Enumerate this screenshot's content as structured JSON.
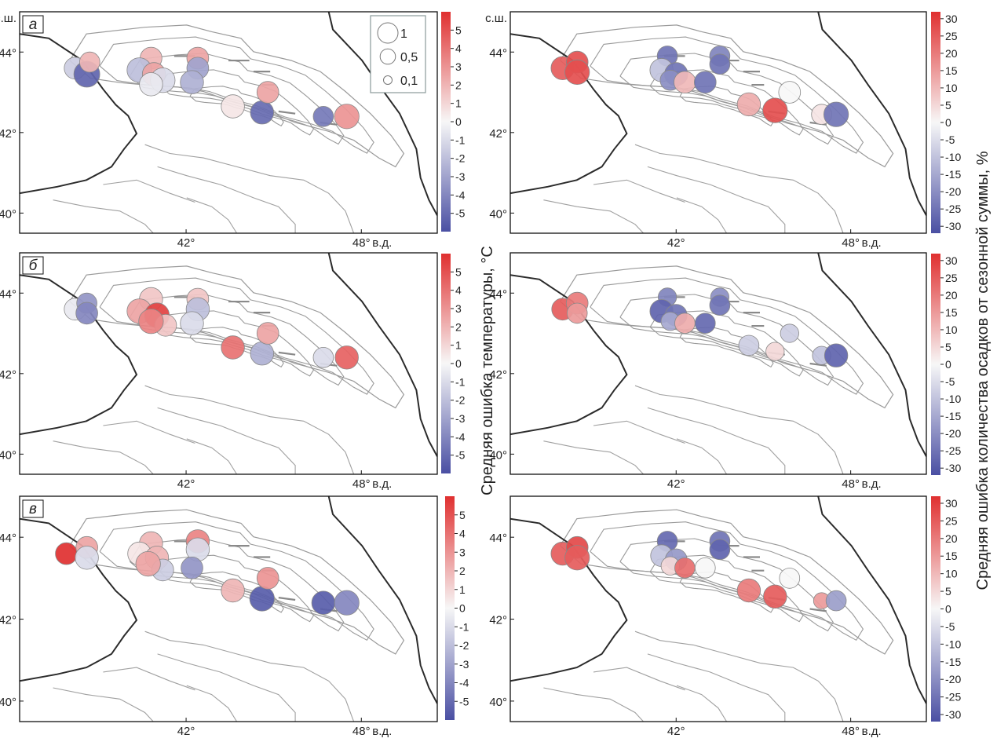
{
  "axes": {
    "north_label": "с.ш.",
    "east_label": "в.д.",
    "lat_ticks": [
      "44°",
      "42°",
      "40°"
    ],
    "lon_ticks": [
      "42°",
      "48°"
    ]
  },
  "size_legend": [
    {
      "label": "1",
      "value": 1.0
    },
    {
      "label": "0,5",
      "value": 0.5
    },
    {
      "label": "0,1",
      "value": 0.1
    }
  ],
  "temperature_colorbar": {
    "label": "Средняя ошибка температуры, °C",
    "range": [
      -6,
      6
    ],
    "ticks": [
      "5",
      "4",
      "3",
      "2",
      "1",
      "0",
      "-1",
      "-2",
      "-3",
      "-4",
      "-5"
    ],
    "low_color": "#4a4fa3",
    "mid_color": "#f7f7f7",
    "high_color": "#e03030"
  },
  "precipitation_colorbar": {
    "label": "Средняя ошибка количества осадков от сезонной суммы, %",
    "range": [
      -32,
      32
    ],
    "ticks": [
      "30",
      "25",
      "20",
      "15",
      "10",
      "5",
      "0",
      "-5",
      "-10",
      "-15",
      "-20",
      "-25",
      "-30"
    ]
  },
  "panels": [
    {
      "letter": "а",
      "temperature": [
        {
          "lon": 38.2,
          "lat": 43.6,
          "size": 0.5,
          "value": -1.5
        },
        {
          "lon": 38.6,
          "lat": 43.45,
          "size": 0.8,
          "value": -5.2
        },
        {
          "lon": 38.7,
          "lat": 43.75,
          "size": 0.4,
          "value": 2.0
        },
        {
          "lon": 40.8,
          "lat": 43.85,
          "size": 0.5,
          "value": 2.0
        },
        {
          "lon": 40.4,
          "lat": 43.55,
          "size": 0.7,
          "value": -2.0
        },
        {
          "lon": 40.9,
          "lat": 43.45,
          "size": 0.6,
          "value": 2.5
        },
        {
          "lon": 41.2,
          "lat": 43.3,
          "size": 0.7,
          "value": -1.0
        },
        {
          "lon": 40.8,
          "lat": 43.2,
          "size": 0.6,
          "value": -0.5
        },
        {
          "lon": 42.4,
          "lat": 43.85,
          "size": 0.5,
          "value": 2.5
        },
        {
          "lon": 42.4,
          "lat": 43.6,
          "size": 0.5,
          "value": -3.0
        },
        {
          "lon": 42.2,
          "lat": 43.25,
          "size": 0.6,
          "value": -2.5
        },
        {
          "lon": 43.6,
          "lat": 42.65,
          "size": 0.6,
          "value": 0.5
        },
        {
          "lon": 44.6,
          "lat": 42.5,
          "size": 0.6,
          "value": -5.0
        },
        {
          "lon": 44.8,
          "lat": 43.0,
          "size": 0.5,
          "value": 2.5
        },
        {
          "lon": 46.7,
          "lat": 42.4,
          "size": 0.4,
          "value": -4.5
        },
        {
          "lon": 47.5,
          "lat": 42.4,
          "size": 0.7,
          "value": 3.0
        }
      ],
      "precipitation": [
        {
          "lon": 38.1,
          "lat": 43.6,
          "size": 0.6,
          "value": 25
        },
        {
          "lon": 38.6,
          "lat": 43.75,
          "size": 0.5,
          "value": 27
        },
        {
          "lon": 38.6,
          "lat": 43.5,
          "size": 0.7,
          "value": 27
        },
        {
          "lon": 41.7,
          "lat": 43.9,
          "size": 0.4,
          "value": -25
        },
        {
          "lon": 41.5,
          "lat": 43.55,
          "size": 0.6,
          "value": -10
        },
        {
          "lon": 42.0,
          "lat": 43.45,
          "size": 0.6,
          "value": -25
        },
        {
          "lon": 41.8,
          "lat": 43.3,
          "size": 0.4,
          "value": -20
        },
        {
          "lon": 42.3,
          "lat": 43.25,
          "size": 0.5,
          "value": 10
        },
        {
          "lon": 43.0,
          "lat": 43.25,
          "size": 0.5,
          "value": -25
        },
        {
          "lon": 43.5,
          "lat": 43.9,
          "size": 0.4,
          "value": -22
        },
        {
          "lon": 43.5,
          "lat": 43.7,
          "size": 0.4,
          "value": -25
        },
        {
          "lon": 44.5,
          "lat": 42.7,
          "size": 0.6,
          "value": 12
        },
        {
          "lon": 45.4,
          "lat": 42.55,
          "size": 0.7,
          "value": 27
        },
        {
          "lon": 45.9,
          "lat": 43.0,
          "size": 0.5,
          "value": 0
        },
        {
          "lon": 47.0,
          "lat": 42.45,
          "size": 0.4,
          "value": 3
        },
        {
          "lon": 47.5,
          "lat": 42.45,
          "size": 0.7,
          "value": -25
        }
      ]
    },
    {
      "letter": "б",
      "temperature": [
        {
          "lon": 38.2,
          "lat": 43.6,
          "size": 0.5,
          "value": -0.5
        },
        {
          "lon": 38.6,
          "lat": 43.75,
          "size": 0.4,
          "value": -3.5
        },
        {
          "lon": 38.6,
          "lat": 43.5,
          "size": 0.5,
          "value": -4.0
        },
        {
          "lon": 40.8,
          "lat": 43.85,
          "size": 0.6,
          "value": 1.5
        },
        {
          "lon": 40.4,
          "lat": 43.55,
          "size": 0.7,
          "value": 2.5
        },
        {
          "lon": 41.0,
          "lat": 43.45,
          "size": 0.7,
          "value": 5.5
        },
        {
          "lon": 41.3,
          "lat": 43.2,
          "size": 0.5,
          "value": 1.5
        },
        {
          "lon": 40.8,
          "lat": 43.3,
          "size": 0.7,
          "value": 3.5
        },
        {
          "lon": 42.4,
          "lat": 43.85,
          "size": 0.5,
          "value": 1.5
        },
        {
          "lon": 42.4,
          "lat": 43.6,
          "size": 0.6,
          "value": -2.0
        },
        {
          "lon": 42.2,
          "lat": 43.25,
          "size": 0.6,
          "value": -1.0
        },
        {
          "lon": 43.6,
          "lat": 42.65,
          "size": 0.6,
          "value": 4.0
        },
        {
          "lon": 44.6,
          "lat": 42.5,
          "size": 0.6,
          "value": -2.5
        },
        {
          "lon": 44.8,
          "lat": 43.0,
          "size": 0.5,
          "value": 2.5
        },
        {
          "lon": 46.7,
          "lat": 42.4,
          "size": 0.4,
          "value": -1.0
        },
        {
          "lon": 47.5,
          "lat": 42.4,
          "size": 0.6,
          "value": 4.5
        }
      ],
      "precipitation": [
        {
          "lon": 38.1,
          "lat": 43.6,
          "size": 0.5,
          "value": 25
        },
        {
          "lon": 38.6,
          "lat": 43.75,
          "size": 0.5,
          "value": 20
        },
        {
          "lon": 38.6,
          "lat": 43.5,
          "size": 0.4,
          "value": 15
        },
        {
          "lon": 41.7,
          "lat": 43.9,
          "size": 0.3,
          "value": -22
        },
        {
          "lon": 41.5,
          "lat": 43.55,
          "size": 0.6,
          "value": -28
        },
        {
          "lon": 42.0,
          "lat": 43.45,
          "size": 0.5,
          "value": -25
        },
        {
          "lon": 41.8,
          "lat": 43.3,
          "size": 0.3,
          "value": -15
        },
        {
          "lon": 42.3,
          "lat": 43.25,
          "size": 0.4,
          "value": 12
        },
        {
          "lon": 43.0,
          "lat": 43.25,
          "size": 0.4,
          "value": -27
        },
        {
          "lon": 43.5,
          "lat": 43.9,
          "size": 0.3,
          "value": -20
        },
        {
          "lon": 43.5,
          "lat": 43.7,
          "size": 0.4,
          "value": -25
        },
        {
          "lon": 44.5,
          "lat": 42.7,
          "size": 0.4,
          "value": -8
        },
        {
          "lon": 45.4,
          "lat": 42.55,
          "size": 0.3,
          "value": 5
        },
        {
          "lon": 45.9,
          "lat": 43.0,
          "size": 0.3,
          "value": -8
        },
        {
          "lon": 47.0,
          "lat": 42.45,
          "size": 0.3,
          "value": -10
        },
        {
          "lon": 47.5,
          "lat": 42.45,
          "size": 0.6,
          "value": -28
        }
      ]
    },
    {
      "letter": "в",
      "temperature": [
        {
          "lon": 37.9,
          "lat": 43.6,
          "size": 0.5,
          "value": 6.0
        },
        {
          "lon": 38.6,
          "lat": 43.75,
          "size": 0.5,
          "value": 2.5
        },
        {
          "lon": 38.6,
          "lat": 43.5,
          "size": 0.6,
          "value": -1.0
        },
        {
          "lon": 40.8,
          "lat": 43.85,
          "size": 0.6,
          "value": 2.0
        },
        {
          "lon": 40.4,
          "lat": 43.6,
          "size": 0.6,
          "value": 0.5
        },
        {
          "lon": 41.0,
          "lat": 43.5,
          "size": 0.6,
          "value": 2.0
        },
        {
          "lon": 41.2,
          "lat": 43.2,
          "size": 0.5,
          "value": -1.5
        },
        {
          "lon": 40.7,
          "lat": 43.35,
          "size": 0.7,
          "value": 2.5
        },
        {
          "lon": 42.4,
          "lat": 43.9,
          "size": 0.6,
          "value": 3.5
        },
        {
          "lon": 42.4,
          "lat": 43.7,
          "size": 0.6,
          "value": -1.0
        },
        {
          "lon": 42.2,
          "lat": 43.25,
          "size": 0.5,
          "value": -3.5
        },
        {
          "lon": 43.6,
          "lat": 42.7,
          "size": 0.6,
          "value": 2.0
        },
        {
          "lon": 44.6,
          "lat": 42.5,
          "size": 0.7,
          "value": -5.5
        },
        {
          "lon": 44.8,
          "lat": 43.0,
          "size": 0.5,
          "value": 3.0
        },
        {
          "lon": 46.7,
          "lat": 42.4,
          "size": 0.6,
          "value": -5.5
        },
        {
          "lon": 47.5,
          "lat": 42.4,
          "size": 0.7,
          "value": -4.0
        }
      ],
      "precipitation": [
        {
          "lon": 38.1,
          "lat": 43.6,
          "size": 0.6,
          "value": 25
        },
        {
          "lon": 38.6,
          "lat": 43.75,
          "size": 0.5,
          "value": 28
        },
        {
          "lon": 38.6,
          "lat": 43.5,
          "size": 0.7,
          "value": 25
        },
        {
          "lon": 41.7,
          "lat": 43.9,
          "size": 0.4,
          "value": -27
        },
        {
          "lon": 41.5,
          "lat": 43.55,
          "size": 0.5,
          "value": -10
        },
        {
          "lon": 42.0,
          "lat": 43.45,
          "size": 0.5,
          "value": -18
        },
        {
          "lon": 41.8,
          "lat": 43.3,
          "size": 0.3,
          "value": 5
        },
        {
          "lon": 42.3,
          "lat": 43.25,
          "size": 0.4,
          "value": 22
        },
        {
          "lon": 43.0,
          "lat": 43.25,
          "size": 0.4,
          "value": 0
        },
        {
          "lon": 43.5,
          "lat": 43.9,
          "size": 0.4,
          "value": -25
        },
        {
          "lon": 43.5,
          "lat": 43.7,
          "size": 0.4,
          "value": -28
        },
        {
          "lon": 44.5,
          "lat": 42.7,
          "size": 0.6,
          "value": 20
        },
        {
          "lon": 45.4,
          "lat": 42.55,
          "size": 0.6,
          "value": 25
        },
        {
          "lon": 45.9,
          "lat": 43.0,
          "size": 0.4,
          "value": 0
        },
        {
          "lon": 47.0,
          "lat": 42.45,
          "size": 0.2,
          "value": 15
        },
        {
          "lon": 47.5,
          "lat": 42.45,
          "size": 0.4,
          "value": -17
        }
      ]
    }
  ]
}
